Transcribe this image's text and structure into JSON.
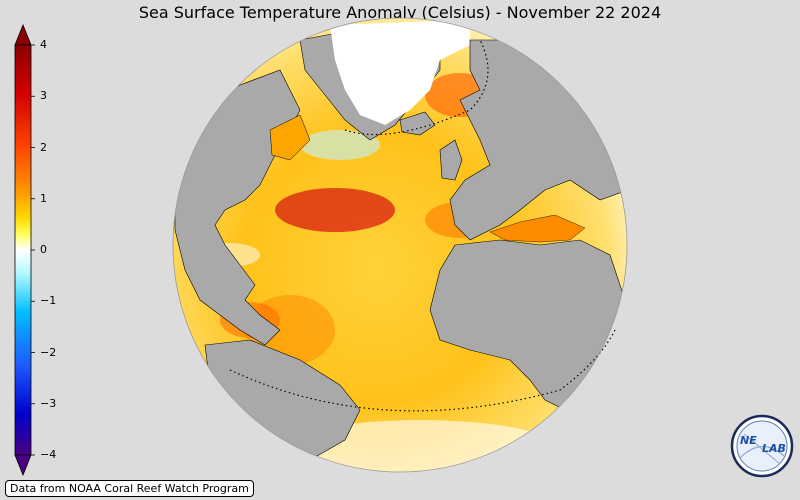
{
  "title": "Sea Surface Temperature Anomaly (Celsius) - November 22 2024",
  "colorbar": {
    "ticks": [
      "4",
      "3",
      "2",
      "1",
      "0",
      "−1",
      "−2",
      "−3",
      "−4"
    ],
    "values": [
      4,
      3,
      2,
      1,
      0,
      -1,
      -2,
      -3,
      -4
    ],
    "colors": [
      "#8b0000",
      "#d40000",
      "#ff4500",
      "#ff8c00",
      "#ffd700",
      "#ffff66",
      "#ffffff",
      "#9ff5ff",
      "#00bfff",
      "#1e64ff",
      "#0000cd",
      "#4b0082"
    ]
  },
  "credit": "Data from NOAA Coral Reef Watch Program",
  "logo": {
    "text_left": "NE",
    "text_right": "LAB"
  },
  "map": {
    "land_color": "#a9a9a9",
    "projection": "orthographic"
  }
}
